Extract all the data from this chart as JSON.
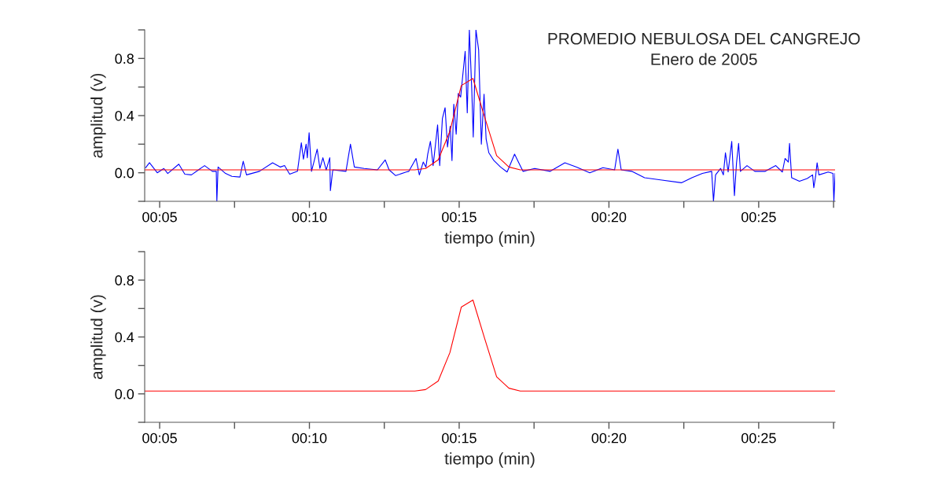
{
  "chart_data": [
    {
      "type": "line",
      "title": "PROMEDIO NEBULOSA DEL CANGREJO",
      "subtitle": "Enero de 2005",
      "xlabel": "tiempo (min)",
      "ylabel": "amplitud (v)",
      "xlim": [
        4.5,
        27.55
      ],
      "ylim": [
        -0.2,
        1.0
      ],
      "xticks": [
        {
          "value": 5,
          "label": "00:05"
        },
        {
          "value": 7.5,
          "label": null
        },
        {
          "value": 10,
          "label": "00:10"
        },
        {
          "value": 12.5,
          "label": null
        },
        {
          "value": 15,
          "label": "00:15"
        },
        {
          "value": 17.5,
          "label": null
        },
        {
          "value": 20,
          "label": "00:20"
        },
        {
          "value": 22.5,
          "label": null
        },
        {
          "value": 25,
          "label": "00:25"
        },
        {
          "value": 27.5,
          "label": null
        }
      ],
      "yticks": [
        {
          "value": -0.2,
          "label": null
        },
        {
          "value": 0.0,
          "label": "0.0"
        },
        {
          "value": 0.2,
          "label": null
        },
        {
          "value": 0.4,
          "label": "0.4"
        },
        {
          "value": 0.6,
          "label": null
        },
        {
          "value": 0.8,
          "label": "0.8"
        },
        {
          "value": 1.0,
          "label": null
        }
      ],
      "grid": false,
      "legend": false,
      "series": [
        {
          "color": "#0000ff",
          "x": [
            4.53,
            4.66,
            4.92,
            5.14,
            5.27,
            5.64,
            5.84,
            6.06,
            6.5,
            6.76,
            6.89,
            6.91,
            6.95,
            7.2,
            7.41,
            7.68,
            7.79,
            7.9,
            8.33,
            8.77,
            9.03,
            9.17,
            9.34,
            9.6,
            9.73,
            9.8,
            9.89,
            9.93,
            9.99,
            10.07,
            10.26,
            10.35,
            10.45,
            10.56,
            10.68,
            10.7,
            10.78,
            11.22,
            11.37,
            11.5,
            11.83,
            12.27,
            12.53,
            12.66,
            12.88,
            13.23,
            13.32,
            13.56,
            13.67,
            13.8,
            13.89,
            13.95,
            14.04,
            14.13,
            14.21,
            14.28,
            14.35,
            14.44,
            14.53,
            14.61,
            14.7,
            14.76,
            14.82,
            14.9,
            14.97,
            15.05,
            15.11,
            15.2,
            15.27,
            15.34,
            15.42,
            15.47,
            15.56,
            15.65,
            15.74,
            15.83,
            15.9,
            15.99,
            16.16,
            16.38,
            16.6,
            16.85,
            16.99,
            17.13,
            17.52,
            18.04,
            18.53,
            18.92,
            19.36,
            19.8,
            20.19,
            20.3,
            20.41,
            20.76,
            21.19,
            21.72,
            22.42,
            22.77,
            23.12,
            23.43,
            23.49,
            23.56,
            23.73,
            23.82,
            23.89,
            23.98,
            24.1,
            24.19,
            24.26,
            24.33,
            24.39,
            24.61,
            24.87,
            25.22,
            25.57,
            25.79,
            25.88,
            25.99,
            26.03,
            26.1,
            26.36,
            26.62,
            26.8,
            26.84,
            26.9,
            26.95,
            27.01,
            27.32,
            27.48,
            27.51,
            27.55
          ],
          "values": [
            0.035,
            0.07,
            0.0,
            0.03,
            -0.005,
            0.06,
            -0.01,
            -0.015,
            0.05,
            0.01,
            0.01,
            -0.2,
            0.04,
            -0.005,
            -0.025,
            -0.03,
            0.08,
            -0.015,
            0.01,
            0.07,
            0.04,
            0.05,
            -0.01,
            0.01,
            0.21,
            0.095,
            0.2,
            0.105,
            0.28,
            0.01,
            0.165,
            0.03,
            0.105,
            0.02,
            0.105,
            -0.125,
            0.02,
            0.01,
            0.2,
            0.04,
            0.03,
            0.02,
            0.09,
            0.02,
            -0.02,
            0.005,
            0.01,
            0.1,
            -0.015,
            0.075,
            0.04,
            0.13,
            0.22,
            0.05,
            0.2,
            0.335,
            0.05,
            0.38,
            0.455,
            0.18,
            0.325,
            0.085,
            0.48,
            0.27,
            0.555,
            0.53,
            0.66,
            0.85,
            0.42,
            1.0,
            0.585,
            0.25,
            1.0,
            0.86,
            0.2,
            0.55,
            0.235,
            0.14,
            0.085,
            0.04,
            0.005,
            0.13,
            0.07,
            0.01,
            0.03,
            0.01,
            0.07,
            0.04,
            0.0,
            0.035,
            0.02,
            0.165,
            0.02,
            0.01,
            -0.035,
            -0.05,
            -0.07,
            -0.035,
            -0.005,
            0.01,
            -0.2,
            -0.015,
            0.03,
            -0.015,
            0.14,
            0.005,
            0.22,
            -0.16,
            0.07,
            0.205,
            0.01,
            0.05,
            0.01,
            0.01,
            0.05,
            0.005,
            0.1,
            0.075,
            0.205,
            -0.035,
            -0.06,
            -0.04,
            -0.015,
            -0.105,
            -0.025,
            0.07,
            -0.015,
            0.005,
            -0.005,
            -0.2,
            -0.005
          ]
        },
        {
          "color": "#ff0000",
          "x": [
            4.5,
            13.52,
            13.88,
            14.3,
            14.69,
            15.07,
            15.46,
            15.85,
            16.25,
            16.66,
            17.04,
            27.55
          ],
          "values": [
            0.02,
            0.02,
            0.03,
            0.09,
            0.29,
            0.61,
            0.66,
            0.39,
            0.12,
            0.04,
            0.02,
            0.02
          ]
        }
      ]
    },
    {
      "type": "line",
      "xlabel": "tiempo (min)",
      "ylabel": "amplitud (v)",
      "xlim": [
        4.5,
        27.55
      ],
      "ylim": [
        -0.2,
        1.0
      ],
      "xticks": [
        {
          "value": 5,
          "label": "00:05"
        },
        {
          "value": 7.5,
          "label": null
        },
        {
          "value": 10,
          "label": "00:10"
        },
        {
          "value": 12.5,
          "label": null
        },
        {
          "value": 15,
          "label": "00:15"
        },
        {
          "value": 17.5,
          "label": null
        },
        {
          "value": 20,
          "label": "00:20"
        },
        {
          "value": 22.5,
          "label": null
        },
        {
          "value": 25,
          "label": "00:25"
        },
        {
          "value": 27.5,
          "label": null
        }
      ],
      "yticks": [
        {
          "value": -0.2,
          "label": null
        },
        {
          "value": 0.0,
          "label": "0.0"
        },
        {
          "value": 0.2,
          "label": null
        },
        {
          "value": 0.4,
          "label": "0.4"
        },
        {
          "value": 0.6,
          "label": null
        },
        {
          "value": 0.8,
          "label": "0.8"
        },
        {
          "value": 1.0,
          "label": null
        }
      ],
      "grid": false,
      "legend": false,
      "series": [
        {
          "color": "#ff0000",
          "x": [
            4.5,
            13.52,
            13.88,
            14.3,
            14.69,
            15.07,
            15.46,
            15.85,
            16.25,
            16.66,
            17.04,
            27.55
          ],
          "values": [
            0.02,
            0.02,
            0.03,
            0.09,
            0.29,
            0.61,
            0.66,
            0.39,
            0.12,
            0.04,
            0.02,
            0.02
          ]
        }
      ]
    }
  ]
}
